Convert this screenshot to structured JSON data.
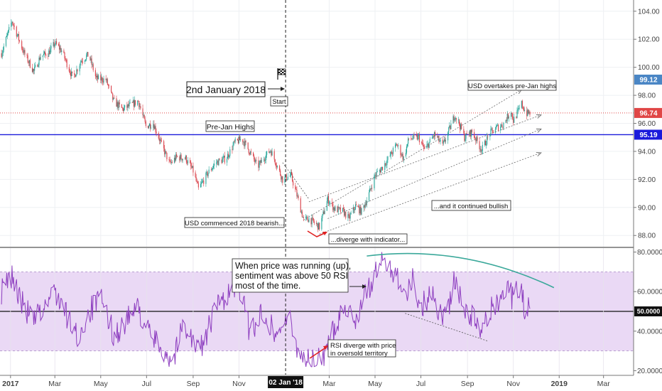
{
  "chart_data": [
    {
      "type": "candlestick",
      "title": "",
      "ylim": [
        87.2,
        104.8
      ],
      "yticks": [
        "104.00",
        "102.00",
        "100.00",
        "98.00",
        "96.00",
        "94.00",
        "92.00",
        "90.00",
        "88.00"
      ],
      "price_labels": {
        "upper": {
          "value": 99.12,
          "text": "99.12",
          "color": "#4a86c5"
        },
        "current": {
          "value": 96.74,
          "text": "96.74",
          "color": "#e04646"
        },
        "prejan": {
          "value": 95.19,
          "text": "95.19",
          "color": "#1a1adb"
        }
      },
      "colors": {
        "up": "#26a69a",
        "down": "#d9414a",
        "prejan_line": "#1a1adb",
        "current_line": "#e04646"
      },
      "path_anchors": [
        [
          "2016-12-20",
          101.0
        ],
        [
          "2017-01-03",
          103.3
        ],
        [
          "2017-01-12",
          102.0
        ],
        [
          "2017-01-20",
          100.9
        ],
        [
          "2017-02-01",
          99.7
        ],
        [
          "2017-02-10",
          100.8
        ],
        [
          "2017-02-20",
          101.0
        ],
        [
          "2017-03-01",
          101.7
        ],
        [
          "2017-03-10",
          101.2
        ],
        [
          "2017-03-25",
          99.2
        ],
        [
          "2017-04-05",
          100.5
        ],
        [
          "2017-04-15",
          100.9
        ],
        [
          "2017-04-25",
          99.2
        ],
        [
          "2017-05-08",
          99.1
        ],
        [
          "2017-05-18",
          97.6
        ],
        [
          "2017-05-30",
          97.0
        ],
        [
          "2017-06-10",
          97.3
        ],
        [
          "2017-06-20",
          97.6
        ],
        [
          "2017-06-30",
          95.8
        ],
        [
          "2017-07-10",
          96.0
        ],
        [
          "2017-07-20",
          94.6
        ],
        [
          "2017-08-01",
          93.1
        ],
        [
          "2017-08-10",
          93.6
        ],
        [
          "2017-08-22",
          93.5
        ],
        [
          "2017-09-01",
          92.6
        ],
        [
          "2017-09-08",
          91.3
        ],
        [
          "2017-09-20",
          92.4
        ],
        [
          "2017-10-01",
          93.2
        ],
        [
          "2017-10-15",
          93.5
        ],
        [
          "2017-10-26",
          94.6
        ],
        [
          "2017-11-05",
          94.9
        ],
        [
          "2017-11-15",
          94.0
        ],
        [
          "2017-11-26",
          92.9
        ],
        [
          "2017-12-05",
          93.6
        ],
        [
          "2017-12-13",
          94.1
        ],
        [
          "2017-12-20",
          93.2
        ],
        [
          "2017-12-29",
          92.0
        ],
        [
          "2018-01-09",
          92.3
        ],
        [
          "2018-01-18",
          90.7
        ],
        [
          "2018-01-26",
          89.1
        ],
        [
          "2018-02-02",
          89.2
        ],
        [
          "2018-02-16",
          88.6
        ],
        [
          "2018-02-27",
          90.6
        ],
        [
          "2018-03-08",
          89.9
        ],
        [
          "2018-03-20",
          89.7
        ],
        [
          "2018-03-27",
          89.2
        ],
        [
          "2018-04-05",
          90.1
        ],
        [
          "2018-04-13",
          89.7
        ],
        [
          "2018-04-22",
          90.8
        ],
        [
          "2018-05-01",
          92.3
        ],
        [
          "2018-05-10",
          92.8
        ],
        [
          "2018-05-20",
          93.6
        ],
        [
          "2018-05-30",
          94.5
        ],
        [
          "2018-06-08",
          93.5
        ],
        [
          "2018-06-15",
          94.9
        ],
        [
          "2018-06-28",
          95.0
        ],
        [
          "2018-07-06",
          94.1
        ],
        [
          "2018-07-19",
          95.2
        ],
        [
          "2018-07-30",
          94.4
        ],
        [
          "2018-08-06",
          95.3
        ],
        [
          "2018-08-15",
          96.6
        ],
        [
          "2018-08-20",
          96.1
        ],
        [
          "2018-08-28",
          95.0
        ],
        [
          "2018-09-07",
          95.4
        ],
        [
          "2018-09-20",
          94.1
        ],
        [
          "2018-10-01",
          95.3
        ],
        [
          "2018-10-10",
          95.7
        ],
        [
          "2018-10-18",
          95.9
        ],
        [
          "2018-10-29",
          96.9
        ],
        [
          "2018-11-01",
          96.2
        ],
        [
          "2018-11-08",
          96.9
        ],
        [
          "2018-11-12",
          97.4
        ],
        [
          "2018-11-18",
          96.7
        ],
        [
          "2018-11-24",
          96.74
        ]
      ],
      "channel_lines": [
        {
          "from": [
            "2018-01-26",
            89.1
          ],
          "to": [
            "2018-11-12",
            98.4
          ]
        },
        {
          "from": [
            "2018-02-02",
            90.4
          ],
          "to": [
            "2018-12-08",
            96.6
          ]
        },
        {
          "from": [
            "2018-02-27",
            89.2
          ],
          "to": [
            "2018-12-08",
            95.6
          ]
        },
        {
          "from": [
            "2018-02-16",
            88.1
          ],
          "to": [
            "2018-12-08",
            93.9
          ]
        }
      ],
      "annotations": {
        "start_date": "2nd January 2018",
        "start": "Start",
        "prejan": "Pre-Jan Highs",
        "usd_overtakes": "USD overtakes pre-Jan highs",
        "continued": "...and it continued bullish",
        "commenced": "USD commenced 2018 bearish...",
        "diverge": "...diverge with indicator..."
      }
    },
    {
      "type": "line",
      "title": "",
      "ylim": [
        18,
        82
      ],
      "yticks": [
        "80.0000",
        "60.0000",
        "40.0000",
        "20.0000"
      ],
      "level_label": {
        "value": 50,
        "text": "50.0000"
      },
      "band": [
        30,
        70
      ],
      "colors": {
        "rsi": "#8e3fc0",
        "band": "#ead9f5",
        "curve": "#3aa89a"
      },
      "path_anchors": [
        [
          "2016-12-20",
          60
        ],
        [
          "2017-01-03",
          68
        ],
        [
          "2017-01-15",
          55
        ],
        [
          "2017-02-01",
          45
        ],
        [
          "2017-02-15",
          52
        ],
        [
          "2017-03-01",
          61
        ],
        [
          "2017-03-15",
          49
        ],
        [
          "2017-04-01",
          36
        ],
        [
          "2017-04-15",
          50
        ],
        [
          "2017-05-01",
          56
        ],
        [
          "2017-05-20",
          37
        ],
        [
          "2017-06-01",
          44
        ],
        [
          "2017-06-20",
          52
        ],
        [
          "2017-07-05",
          38
        ],
        [
          "2017-07-25",
          30
        ],
        [
          "2017-08-05",
          25
        ],
        [
          "2017-08-20",
          45
        ],
        [
          "2017-09-05",
          31
        ],
        [
          "2017-09-15",
          34
        ],
        [
          "2017-10-01",
          52
        ],
        [
          "2017-10-20",
          60
        ],
        [
          "2017-11-01",
          63
        ],
        [
          "2017-11-15",
          40
        ],
        [
          "2017-12-05",
          50
        ],
        [
          "2017-12-20",
          38
        ],
        [
          "2018-01-05",
          48
        ],
        [
          "2018-01-15",
          34
        ],
        [
          "2018-01-26",
          27
        ],
        [
          "2018-02-10",
          24
        ],
        [
          "2018-02-25",
          30
        ],
        [
          "2018-03-05",
          38
        ],
        [
          "2018-03-20",
          54
        ],
        [
          "2018-04-05",
          46
        ],
        [
          "2018-04-18",
          58
        ],
        [
          "2018-05-01",
          68
        ],
        [
          "2018-05-10",
          76
        ],
        [
          "2018-05-20",
          72
        ],
        [
          "2018-05-30",
          70
        ],
        [
          "2018-06-10",
          58
        ],
        [
          "2018-06-20",
          66
        ],
        [
          "2018-07-01",
          52
        ],
        [
          "2018-07-15",
          60
        ],
        [
          "2018-07-28",
          48
        ],
        [
          "2018-08-10",
          56
        ],
        [
          "2018-08-15",
          66
        ],
        [
          "2018-08-28",
          50
        ],
        [
          "2018-09-10",
          46
        ],
        [
          "2018-09-20",
          38
        ],
        [
          "2018-10-01",
          50
        ],
        [
          "2018-10-12",
          56
        ],
        [
          "2018-10-24",
          64
        ],
        [
          "2018-11-01",
          55
        ],
        [
          "2018-11-10",
          64
        ],
        [
          "2018-11-16",
          50
        ],
        [
          "2018-11-24",
          55
        ]
      ],
      "annotations": {
        "sentiment_1": "When price was running (up),",
        "sentiment_2": "sentiment was above 50 RSI",
        "sentiment_3": "most of the time.",
        "rsi_1": "RSI diverge with price",
        "rsi_2": "in oversold territory"
      }
    }
  ],
  "x_axis": {
    "min": "2016-12-18",
    "max": "2019-04-10",
    "ticks": [
      {
        "date": "2017-01-01",
        "label": "2017",
        "bold": true
      },
      {
        "date": "2017-03-01",
        "label": "Mar",
        "bold": false
      },
      {
        "date": "2017-05-01",
        "label": "May",
        "bold": false
      },
      {
        "date": "2017-07-01",
        "label": "Jul",
        "bold": false
      },
      {
        "date": "2017-09-01",
        "label": "Sep",
        "bold": false
      },
      {
        "date": "2017-11-01",
        "label": "Nov",
        "bold": false
      },
      {
        "date": "2018-03-01",
        "label": "Mar",
        "bold": false
      },
      {
        "date": "2018-05-01",
        "label": "May",
        "bold": false
      },
      {
        "date": "2018-07-01",
        "label": "Jul",
        "bold": false
      },
      {
        "date": "2018-09-01",
        "label": "Sep",
        "bold": false
      },
      {
        "date": "2018-11-01",
        "label": "Nov",
        "bold": false
      },
      {
        "date": "2019-01-01",
        "label": "2019",
        "bold": true
      },
      {
        "date": "2019-03-01",
        "label": "Mar",
        "bold": false
      }
    ],
    "marker": {
      "date": "2018-01-02",
      "label": "02 Jan '18"
    }
  }
}
